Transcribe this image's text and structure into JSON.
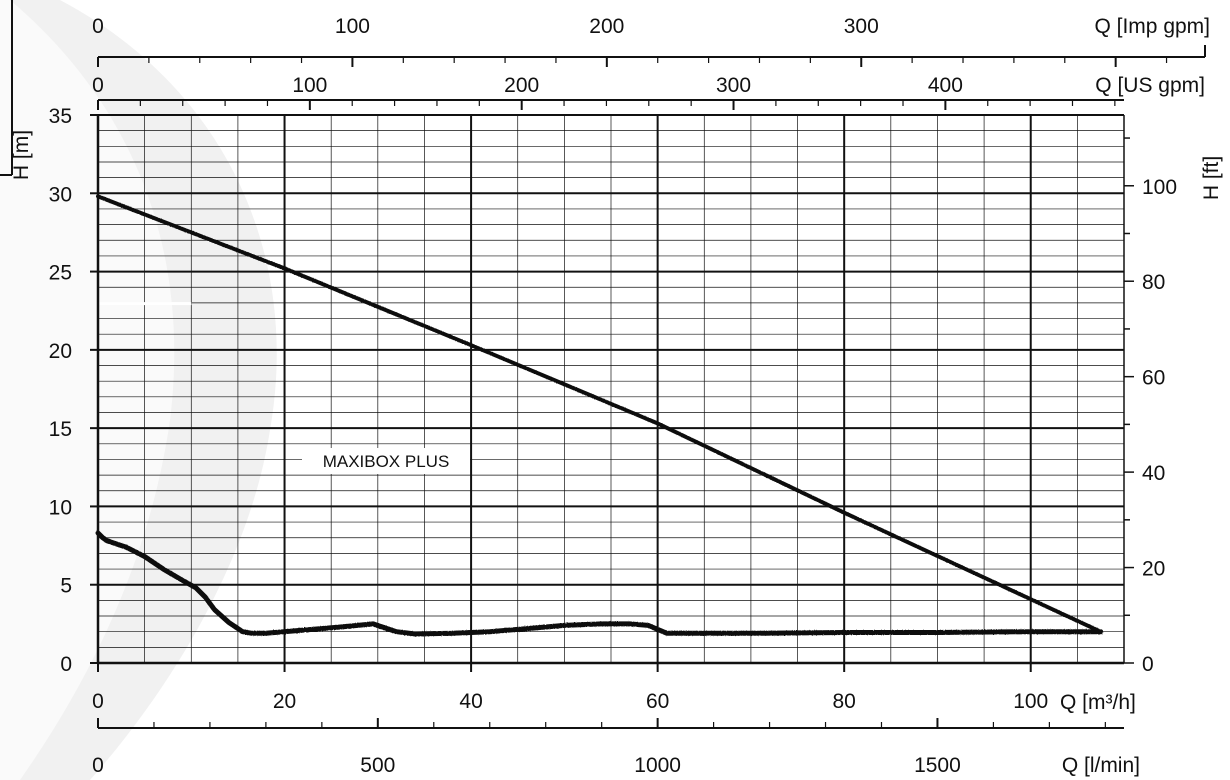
{
  "chart_data": {
    "type": "line",
    "title": "",
    "annotation": "MAXIBOX PLUS",
    "x_unit_labels": {
      "m3h": "Q [m³/h]",
      "lmin": "Q [l/min]",
      "usgpm": "Q [US gpm]",
      "impgpm": "Q [Imp gpm]"
    },
    "y_unit_labels": {
      "m": "H [m]",
      "ft": "H [ft]"
    },
    "xlim": [
      0,
      110
    ],
    "ylim": [
      0,
      35
    ],
    "x_ticks_m3h": [
      0,
      20,
      40,
      60,
      80,
      100
    ],
    "y_ticks_m": [
      0,
      5,
      10,
      15,
      20,
      25,
      30,
      35
    ],
    "y_ticks_ft": [
      0,
      20,
      40,
      60,
      80,
      100
    ],
    "x_ticks_lmin": [
      0,
      500,
      1000,
      1500
    ],
    "x_ticks_usgpm": [
      0,
      100,
      200,
      300,
      400
    ],
    "x_ticks_impgpm": [
      0,
      100,
      200,
      300
    ],
    "series": [
      {
        "role": "pump-curve",
        "x": [
          0,
          20,
          40,
          60,
          80,
          107.5
        ],
        "y": [
          29.8,
          25.2,
          20.3,
          15.3,
          9.6,
          2.0
        ]
      },
      {
        "role": "loss-curve",
        "x": [
          0,
          0.5,
          1,
          3,
          5,
          7,
          9,
          10.5,
          11.5,
          12.5,
          14,
          15.5,
          16.5,
          18,
          22,
          26,
          29.5,
          31,
          32,
          34,
          38,
          42,
          46,
          50,
          54,
          57,
          59,
          61,
          70,
          80,
          90,
          100,
          107.5
        ],
        "y": [
          8.3,
          8.0,
          7.8,
          7.4,
          6.8,
          6.0,
          5.3,
          4.8,
          4.2,
          3.4,
          2.6,
          2.0,
          1.9,
          1.9,
          2.1,
          2.3,
          2.5,
          2.2,
          2.0,
          1.85,
          1.9,
          2.0,
          2.2,
          2.4,
          2.5,
          2.5,
          2.4,
          1.9,
          1.9,
          1.95,
          1.95,
          2.0,
          2.0
        ]
      }
    ],
    "colors": {
      "line": "#111111",
      "grid": "#111111"
    }
  }
}
